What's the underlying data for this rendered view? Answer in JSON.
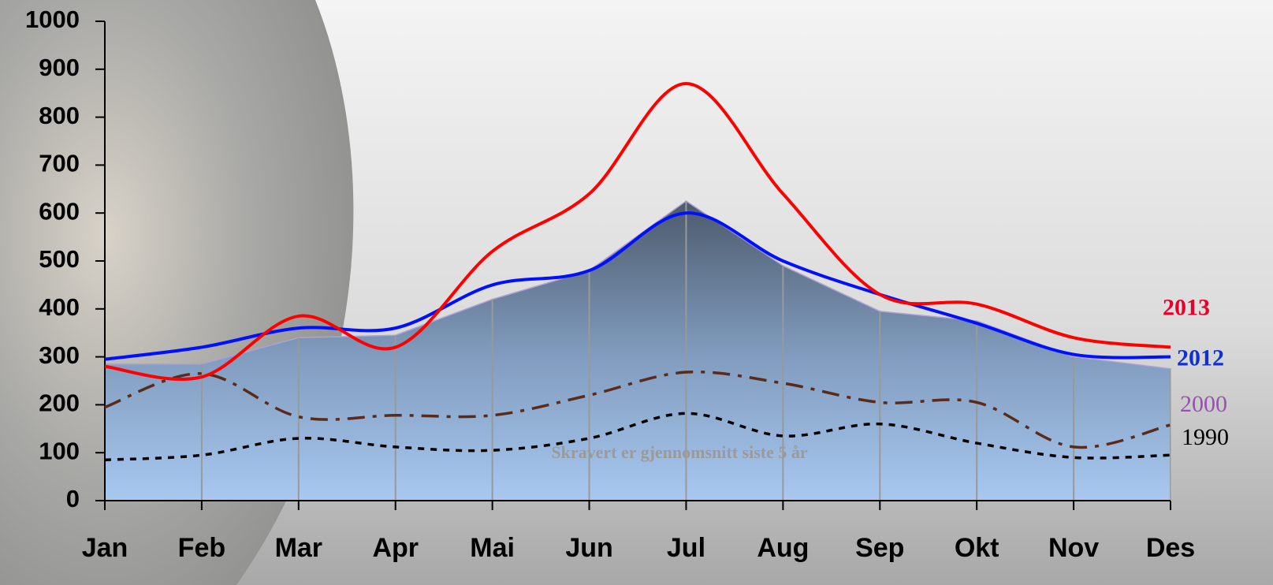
{
  "chart_data": {
    "type": "line",
    "categories": [
      "Jan",
      "Feb",
      "Mar",
      "Apr",
      "Mai",
      "Jun",
      "Jul",
      "Aug",
      "Sep",
      "Okt",
      "Nov",
      "Des"
    ],
    "ylim": [
      0,
      1000
    ],
    "yticks": [
      0,
      100,
      200,
      300,
      400,
      500,
      600,
      700,
      800,
      900,
      1000
    ],
    "annotation": "Skravert er gjennomsnitt siste 5 år",
    "area": {
      "color": "#b0a0d8",
      "values": [
        285,
        285,
        340,
        345,
        420,
        480,
        625,
        490,
        395,
        375,
        300,
        275
      ]
    },
    "series": [
      {
        "name": "2013",
        "color": "#ff0000",
        "label_color": "#e8002a",
        "dash": "solid",
        "values": [
          280,
          258,
          385,
          320,
          520,
          640,
          870,
          640,
          430,
          410,
          340,
          320
        ]
      },
      {
        "name": "2012",
        "color": "#0010ff",
        "label_color": "#1030d0",
        "dash": "solid",
        "values": [
          295,
          320,
          360,
          360,
          450,
          480,
          600,
          500,
          430,
          370,
          305,
          300
        ]
      },
      {
        "name": "2000",
        "color": "#5a2a1a",
        "label_color": "#9a50b0",
        "dash": "dashdot",
        "values": [
          195,
          265,
          175,
          178,
          178,
          220,
          268,
          245,
          205,
          205,
          112,
          158
        ]
      },
      {
        "name": "1990",
        "color": "#000000",
        "label_color": "#000000",
        "dash": "dot",
        "values": [
          85,
          95,
          130,
          112,
          105,
          130,
          182,
          135,
          160,
          120,
          90,
          95
        ]
      }
    ]
  }
}
